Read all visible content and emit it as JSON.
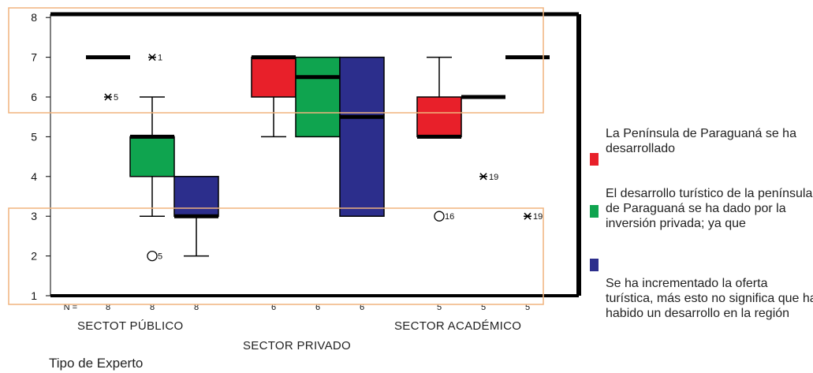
{
  "chart_data": {
    "type": "boxplot",
    "xlabel": "Tipo de Experto",
    "ylim": [
      1,
      8
    ],
    "yticks": [
      1,
      2,
      3,
      4,
      5,
      6,
      7,
      8
    ],
    "grid": false,
    "legend_position": "right",
    "n_label": "N =",
    "groups": [
      "SECTOT PÚBLICO",
      "SECTOR PRIVADO",
      "SECTOR ACADÉMICO"
    ],
    "series": [
      {
        "name": "La Península de Paraguaná se ha desarrollado",
        "color": "#e8202a"
      },
      {
        "name": "El desarrollo turístico de la península de Paraguaná se ha dado por la inversión privada; ya que",
        "color": "#0fa44f"
      },
      {
        "name": "Se ha incrementado la oferta turística, más esto no significa que ha habido un desarrollo en la región",
        "color": "#2c2e8c"
      }
    ],
    "boxes": [
      {
        "group": "SECTOT PÚBLICO",
        "series": 0,
        "n": "8",
        "min": 7,
        "q1": 7,
        "median": 7,
        "q3": 7,
        "max": 7,
        "outliers": [
          {
            "y": 6,
            "marker": "*",
            "label": "5"
          }
        ]
      },
      {
        "group": "SECTOT PÚBLICO",
        "series": 1,
        "n": "8",
        "min": 3,
        "q1": 4,
        "median": 5,
        "q3": 5,
        "max": 6,
        "outliers": [
          {
            "y": 7,
            "marker": "*",
            "label": "1"
          },
          {
            "y": 2,
            "marker": "o",
            "label": "5"
          }
        ]
      },
      {
        "group": "SECTOT PÚBLICO",
        "series": 2,
        "n": "8",
        "min": 2,
        "q1": 3,
        "median": 3,
        "q3": 4,
        "max": 4,
        "outliers": []
      },
      {
        "group": "SECTOR PRIVADO",
        "series": 0,
        "n": "6",
        "min": 5,
        "q1": 6,
        "median": 7,
        "q3": 7,
        "max": 7,
        "outliers": []
      },
      {
        "group": "SECTOR PRIVADO",
        "series": 1,
        "n": "6",
        "min": 5,
        "q1": 5,
        "median": 6.5,
        "q3": 7,
        "max": 7,
        "outliers": []
      },
      {
        "group": "SECTOR PRIVADO",
        "series": 2,
        "n": "6",
        "min": 3,
        "q1": 3,
        "median": 5.5,
        "q3": 7,
        "max": 7,
        "outliers": []
      },
      {
        "group": "SECTOR ACADÉMICO",
        "series": 0,
        "n": "5",
        "min": 5,
        "q1": 5,
        "median": 5,
        "q3": 6,
        "max": 7,
        "outliers": [
          {
            "y": 3,
            "marker": "o",
            "label": "16"
          }
        ]
      },
      {
        "group": "SECTOR ACADÉMICO",
        "series": 1,
        "n": "5",
        "min": 6,
        "q1": 6,
        "median": 6,
        "q3": 6,
        "max": 6,
        "outliers": [
          {
            "y": 4,
            "marker": "*",
            "label": "19"
          }
        ]
      },
      {
        "group": "SECTOR ACADÉMICO",
        "series": 2,
        "n": "5",
        "min": 7,
        "q1": 7,
        "median": 7,
        "q3": 7,
        "max": 7,
        "outliers": [
          {
            "y": 3,
            "marker": "*",
            "label": "19"
          }
        ]
      }
    ]
  }
}
